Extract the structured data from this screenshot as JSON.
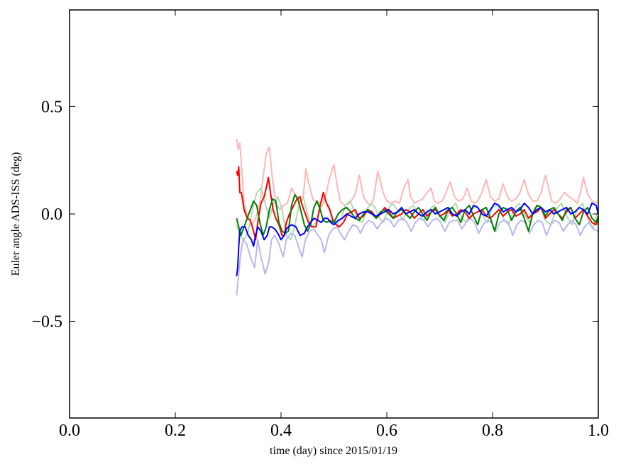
{
  "chart_data": {
    "type": "line",
    "title": "",
    "xlabel": "time (day) since 2015/01/19",
    "ylabel": "Euler angle ADS-ISS (deg)",
    "xlim": [
      0.0,
      1.0
    ],
    "ylim": [
      -0.95,
      0.95
    ],
    "xticks": [
      "0.0",
      "0.2",
      "0.4",
      "0.6",
      "0.8",
      "1.0"
    ],
    "xtick_values": [
      0.0,
      0.2,
      0.4,
      0.6,
      0.8,
      1.0
    ],
    "yticks": [
      "0.5",
      "0.0",
      "−0.5"
    ],
    "ytick_values": [
      0.5,
      0.0,
      -0.5
    ],
    "grid": false,
    "series": [
      {
        "color": "#ffb6b6",
        "x": [
          0.316,
          0.319,
          0.322,
          0.326,
          0.33,
          0.335,
          0.345,
          0.352,
          0.36,
          0.365,
          0.372,
          0.378,
          0.383,
          0.39,
          0.398,
          0.405,
          0.412,
          0.42,
          0.428,
          0.436,
          0.442,
          0.447,
          0.452,
          0.46,
          0.47,
          0.478,
          0.485,
          0.492,
          0.5,
          0.507,
          0.512,
          0.52,
          0.53,
          0.54,
          0.548,
          0.556,
          0.564,
          0.57,
          0.575,
          0.583,
          0.593,
          0.6,
          0.608,
          0.616,
          0.624,
          0.632,
          0.64,
          0.645,
          0.652,
          0.66,
          0.668,
          0.676,
          0.684,
          0.69,
          0.696,
          0.705,
          0.712,
          0.72,
          0.728,
          0.736,
          0.744,
          0.752,
          0.76,
          0.766,
          0.772,
          0.78,
          0.788,
          0.796,
          0.804,
          0.812,
          0.82,
          0.828,
          0.836,
          0.844,
          0.852,
          0.86,
          0.868,
          0.876,
          0.884,
          0.892,
          0.9,
          0.906,
          0.912,
          0.92,
          0.928,
          0.936,
          0.944,
          0.952,
          0.96,
          0.966,
          0.972,
          0.98,
          0.988,
          0.995,
          1.0
        ],
        "y": [
          0.35,
          0.3,
          0.33,
          0.2,
          0.05,
          0.0,
          -0.05,
          -0.02,
          0.05,
          0.15,
          0.28,
          0.31,
          0.18,
          0.05,
          0.02,
          0.04,
          0.05,
          0.12,
          0.08,
          0.05,
          0.08,
          0.21,
          0.15,
          0.07,
          0.05,
          0.06,
          0.09,
          0.17,
          0.23,
          0.12,
          0.06,
          0.04,
          0.05,
          0.09,
          0.18,
          0.08,
          0.05,
          0.04,
          0.07,
          0.2,
          0.1,
          0.06,
          0.05,
          0.06,
          0.05,
          0.12,
          0.16,
          0.08,
          0.05,
          0.06,
          0.07,
          0.1,
          0.12,
          0.06,
          0.05,
          0.06,
          0.1,
          0.15,
          0.08,
          0.06,
          0.07,
          0.12,
          0.06,
          0.05,
          0.06,
          0.1,
          0.16,
          0.08,
          0.06,
          0.07,
          0.14,
          0.08,
          0.06,
          0.07,
          0.1,
          0.16,
          0.09,
          0.06,
          0.06,
          0.1,
          0.18,
          0.12,
          0.06,
          0.05,
          0.07,
          0.1,
          0.08,
          0.07,
          0.05,
          0.1,
          0.17,
          0.09,
          0.06,
          0.05,
          0.06
        ]
      },
      {
        "color": "#b4d9b4",
        "x": [
          0.316,
          0.322,
          0.33,
          0.338,
          0.346,
          0.354,
          0.362,
          0.37,
          0.378,
          0.386,
          0.394,
          0.402,
          0.41,
          0.418,
          0.426,
          0.434,
          0.442,
          0.45,
          0.458,
          0.466,
          0.474,
          0.482,
          0.49,
          0.498,
          0.506,
          0.514,
          0.522,
          0.53,
          0.538,
          0.546,
          0.554,
          0.562,
          0.57,
          0.578,
          0.586,
          0.594,
          0.602,
          0.61,
          0.62,
          0.63,
          0.64,
          0.65,
          0.66,
          0.67,
          0.68,
          0.69,
          0.7,
          0.71,
          0.72,
          0.73,
          0.74,
          0.75,
          0.76,
          0.77,
          0.78,
          0.79,
          0.8,
          0.81,
          0.82,
          0.83,
          0.84,
          0.85,
          0.86,
          0.87,
          0.88,
          0.89,
          0.9,
          0.91,
          0.92,
          0.93,
          0.94,
          0.95,
          0.96,
          0.97,
          0.98,
          0.99,
          1.0
        ],
        "y": [
          -0.05,
          -0.1,
          -0.12,
          -0.08,
          0.02,
          0.1,
          0.12,
          0.05,
          -0.02,
          0.05,
          0.08,
          0.02,
          -0.1,
          -0.12,
          -0.06,
          0.05,
          0.08,
          0.0,
          -0.06,
          -0.04,
          0.02,
          0.06,
          0.04,
          -0.02,
          -0.05,
          -0.02,
          0.04,
          0.06,
          0.02,
          -0.03,
          -0.04,
          0.02,
          0.05,
          0.03,
          -0.02,
          -0.04,
          0.02,
          0.05,
          0.02,
          -0.03,
          0.02,
          0.04,
          0.0,
          -0.03,
          0.02,
          0.04,
          0.0,
          -0.04,
          0.02,
          0.05,
          -0.01,
          -0.04,
          0.02,
          0.04,
          0.0,
          -0.04,
          0.03,
          0.04,
          -0.02,
          -0.05,
          0.02,
          0.05,
          0.0,
          -0.04,
          0.03,
          0.04,
          -0.03,
          -0.05,
          0.02,
          0.05,
          -0.01,
          -0.05,
          0.02,
          0.05,
          -0.02,
          -0.07,
          0.03
        ]
      },
      {
        "color": "#b8b8f0",
        "x": [
          0.316,
          0.319,
          0.323,
          0.328,
          0.335,
          0.342,
          0.35,
          0.356,
          0.362,
          0.37,
          0.377,
          0.382,
          0.388,
          0.396,
          0.404,
          0.41,
          0.418,
          0.426,
          0.434,
          0.44,
          0.446,
          0.454,
          0.462,
          0.47,
          0.476,
          0.482,
          0.49,
          0.498,
          0.506,
          0.512,
          0.52,
          0.528,
          0.536,
          0.544,
          0.55,
          0.558,
          0.566,
          0.574,
          0.582,
          0.59,
          0.598,
          0.606,
          0.614,
          0.622,
          0.63,
          0.638,
          0.646,
          0.654,
          0.662,
          0.67,
          0.678,
          0.686,
          0.694,
          0.702,
          0.71,
          0.718,
          0.726,
          0.734,
          0.742,
          0.75,
          0.758,
          0.766,
          0.774,
          0.782,
          0.79,
          0.798,
          0.806,
          0.814,
          0.822,
          0.83,
          0.838,
          0.846,
          0.854,
          0.862,
          0.87,
          0.878,
          0.886,
          0.894,
          0.902,
          0.91,
          0.918,
          0.926,
          0.934,
          0.942,
          0.95,
          0.958,
          0.966,
          0.974,
          0.982,
          0.99,
          1.0
        ],
        "y": [
          -0.38,
          -0.3,
          -0.2,
          -0.12,
          -0.14,
          -0.2,
          -0.25,
          -0.12,
          -0.2,
          -0.28,
          -0.22,
          -0.12,
          -0.1,
          -0.14,
          -0.2,
          -0.12,
          -0.09,
          -0.1,
          -0.16,
          -0.2,
          -0.12,
          -0.08,
          -0.07,
          -0.1,
          -0.12,
          -0.18,
          -0.1,
          -0.07,
          -0.06,
          -0.09,
          -0.12,
          -0.08,
          -0.05,
          -0.06,
          -0.09,
          -0.05,
          -0.03,
          -0.04,
          -0.07,
          -0.04,
          -0.02,
          -0.03,
          -0.06,
          -0.03,
          -0.02,
          -0.04,
          -0.08,
          -0.04,
          -0.02,
          -0.03,
          -0.06,
          -0.03,
          -0.02,
          -0.04,
          -0.08,
          -0.04,
          -0.03,
          -0.03,
          -0.07,
          -0.04,
          -0.02,
          -0.04,
          -0.09,
          -0.05,
          -0.03,
          -0.04,
          -0.08,
          -0.04,
          -0.03,
          -0.04,
          -0.1,
          -0.05,
          -0.03,
          -0.04,
          -0.09,
          -0.05,
          -0.03,
          -0.04,
          -0.1,
          -0.05,
          -0.03,
          -0.04,
          -0.08,
          -0.05,
          -0.03,
          -0.05,
          -0.1,
          -0.06,
          -0.04,
          -0.07,
          -0.08
        ]
      },
      {
        "color": "#ff0000",
        "x": [
          0.316,
          0.318,
          0.32,
          0.322,
          0.325,
          0.33,
          0.336,
          0.342,
          0.348,
          0.352,
          0.356,
          0.362,
          0.368,
          0.372,
          0.376,
          0.38,
          0.385,
          0.39,
          0.396,
          0.402,
          0.406,
          0.41,
          0.416,
          0.424,
          0.43,
          0.436,
          0.44,
          0.446,
          0.452,
          0.458,
          0.466,
          0.474,
          0.48,
          0.486,
          0.492,
          0.498,
          0.504,
          0.51,
          0.518,
          0.526,
          0.534,
          0.54,
          0.548,
          0.556,
          0.564,
          0.572,
          0.58,
          0.588,
          0.596,
          0.604,
          0.612,
          0.62,
          0.628,
          0.636,
          0.644,
          0.652,
          0.66,
          0.668,
          0.676,
          0.684,
          0.692,
          0.7,
          0.708,
          0.716,
          0.724,
          0.732,
          0.74,
          0.748,
          0.756,
          0.764,
          0.772,
          0.78,
          0.788,
          0.796,
          0.804,
          0.812,
          0.82,
          0.828,
          0.836,
          0.844,
          0.852,
          0.86,
          0.868,
          0.876,
          0.884,
          0.892,
          0.9,
          0.908,
          0.916,
          0.924,
          0.932,
          0.94,
          0.948,
          0.956,
          0.964,
          0.972,
          0.98,
          0.988,
          0.996,
          1.0
        ],
        "y": [
          0.2,
          0.18,
          0.22,
          0.1,
          0.1,
          0.02,
          -0.02,
          -0.03,
          -0.08,
          -0.12,
          -0.04,
          0.05,
          0.08,
          0.12,
          0.17,
          0.1,
          0.02,
          -0.02,
          -0.05,
          -0.1,
          -0.1,
          -0.04,
          0.0,
          0.04,
          0.07,
          0.08,
          0.04,
          0.0,
          -0.04,
          -0.06,
          -0.06,
          0.04,
          0.1,
          0.05,
          0.02,
          -0.03,
          -0.05,
          -0.06,
          -0.04,
          0.0,
          0.01,
          0.02,
          -0.02,
          -0.01,
          0.02,
          0.01,
          -0.02,
          0.0,
          0.03,
          0.01,
          -0.02,
          -0.01,
          0.0,
          0.02,
          0.01,
          -0.02,
          0.0,
          0.02,
          -0.01,
          0.01,
          0.02,
          -0.01,
          0.0,
          0.02,
          -0.01,
          0.0,
          0.02,
          0.01,
          -0.02,
          0.0,
          0.01,
          0.02,
          -0.01,
          -0.02,
          0.0,
          0.02,
          -0.01,
          0.01,
          0.02,
          -0.01,
          0.0,
          0.02,
          -0.02,
          0.0,
          0.01,
          0.03,
          -0.02,
          0.0,
          0.02,
          0.0,
          -0.02,
          0.01,
          0.03,
          -0.02,
          0.0,
          0.02,
          -0.01,
          -0.04,
          -0.05,
          -0.02
        ]
      },
      {
        "color": "#008000",
        "x": [
          0.316,
          0.32,
          0.324,
          0.33,
          0.336,
          0.342,
          0.348,
          0.354,
          0.36,
          0.366,
          0.372,
          0.378,
          0.384,
          0.39,
          0.396,
          0.402,
          0.408,
          0.414,
          0.42,
          0.426,
          0.432,
          0.438,
          0.444,
          0.45,
          0.456,
          0.462,
          0.468,
          0.474,
          0.48,
          0.486,
          0.492,
          0.5,
          0.508,
          0.516,
          0.524,
          0.532,
          0.54,
          0.548,
          0.556,
          0.564,
          0.572,
          0.58,
          0.588,
          0.596,
          0.604,
          0.612,
          0.62,
          0.628,
          0.636,
          0.644,
          0.652,
          0.66,
          0.668,
          0.676,
          0.684,
          0.692,
          0.7,
          0.708,
          0.716,
          0.724,
          0.732,
          0.74,
          0.748,
          0.756,
          0.764,
          0.772,
          0.78,
          0.788,
          0.796,
          0.804,
          0.812,
          0.82,
          0.828,
          0.836,
          0.844,
          0.852,
          0.86,
          0.868,
          0.876,
          0.884,
          0.892,
          0.9,
          0.908,
          0.916,
          0.924,
          0.932,
          0.94,
          0.948,
          0.956,
          0.964,
          0.972,
          0.98,
          0.988,
          0.996,
          1.0
        ],
        "y": [
          -0.02,
          -0.06,
          -0.1,
          -0.06,
          -0.02,
          0.02,
          0.06,
          0.04,
          -0.04,
          -0.1,
          -0.06,
          0.02,
          0.07,
          0.06,
          -0.04,
          -0.08,
          -0.09,
          -0.08,
          0.04,
          0.09,
          0.07,
          0.01,
          -0.05,
          -0.08,
          -0.05,
          0.03,
          0.06,
          0.02,
          -0.03,
          -0.04,
          -0.03,
          -0.04,
          0.0,
          0.02,
          0.03,
          0.01,
          -0.02,
          -0.03,
          0.0,
          0.02,
          0.0,
          -0.02,
          0.01,
          0.02,
          0.0,
          -0.02,
          0.01,
          0.02,
          0.0,
          -0.02,
          0.01,
          0.03,
          0.0,
          -0.03,
          0.01,
          0.03,
          -0.01,
          -0.03,
          0.02,
          0.03,
          0.0,
          -0.04,
          0.02,
          0.04,
          -0.01,
          -0.05,
          0.02,
          0.03,
          -0.02,
          -0.08,
          0.0,
          0.03,
          0.02,
          -0.03,
          0.01,
          0.03,
          -0.02,
          -0.08,
          0.0,
          0.04,
          0.03,
          -0.01,
          0.02,
          0.03,
          0.0,
          -0.03,
          0.02,
          0.03,
          -0.02,
          -0.05,
          0.01,
          0.03,
          -0.02,
          -0.04,
          -0.01
        ]
      },
      {
        "color": "#0000ff",
        "x": [
          0.316,
          0.318,
          0.32,
          0.322,
          0.326,
          0.332,
          0.338,
          0.344,
          0.348,
          0.352,
          0.356,
          0.362,
          0.368,
          0.374,
          0.378,
          0.382,
          0.388,
          0.394,
          0.4,
          0.406,
          0.41,
          0.414,
          0.42,
          0.428,
          0.436,
          0.444,
          0.45,
          0.456,
          0.462,
          0.47,
          0.476,
          0.482,
          0.488,
          0.494,
          0.5,
          0.508,
          0.516,
          0.524,
          0.532,
          0.54,
          0.548,
          0.556,
          0.564,
          0.572,
          0.58,
          0.588,
          0.596,
          0.604,
          0.612,
          0.62,
          0.628,
          0.636,
          0.644,
          0.652,
          0.66,
          0.668,
          0.676,
          0.684,
          0.692,
          0.7,
          0.708,
          0.716,
          0.724,
          0.732,
          0.74,
          0.748,
          0.756,
          0.764,
          0.772,
          0.78,
          0.788,
          0.796,
          0.804,
          0.812,
          0.82,
          0.828,
          0.836,
          0.844,
          0.852,
          0.86,
          0.868,
          0.876,
          0.884,
          0.892,
          0.9,
          0.908,
          0.916,
          0.924,
          0.932,
          0.94,
          0.948,
          0.956,
          0.964,
          0.972,
          0.98,
          0.988,
          0.996,
          1.0
        ],
        "y": [
          -0.29,
          -0.25,
          -0.15,
          -0.08,
          -0.06,
          -0.06,
          -0.1,
          -0.12,
          -0.15,
          -0.1,
          -0.06,
          -0.08,
          -0.12,
          -0.1,
          -0.06,
          -0.06,
          -0.07,
          -0.09,
          -0.12,
          -0.1,
          -0.07,
          -0.06,
          -0.05,
          -0.06,
          -0.1,
          -0.09,
          -0.06,
          -0.04,
          -0.02,
          -0.03,
          -0.04,
          -0.02,
          -0.02,
          -0.04,
          -0.05,
          -0.03,
          -0.02,
          0.0,
          -0.01,
          -0.02,
          0.0,
          0.01,
          0.01,
          0.0,
          -0.01,
          0.0,
          0.01,
          0.02,
          0.0,
          0.01,
          0.03,
          0.0,
          0.01,
          0.02,
          0.0,
          -0.01,
          0.01,
          0.02,
          0.0,
          0.01,
          0.02,
          0.03,
          0.0,
          -0.01,
          0.01,
          0.02,
          0.0,
          0.04,
          0.03,
          0.0,
          -0.01,
          0.02,
          0.05,
          0.04,
          0.01,
          0.02,
          0.03,
          0.01,
          0.02,
          0.05,
          0.03,
          0.0,
          0.02,
          0.03,
          0.01,
          0.02,
          0.0,
          0.01,
          0.02,
          0.03,
          0.0,
          0.01,
          0.03,
          0.02,
          0.0,
          0.05,
          0.04,
          0.0
        ]
      }
    ]
  }
}
